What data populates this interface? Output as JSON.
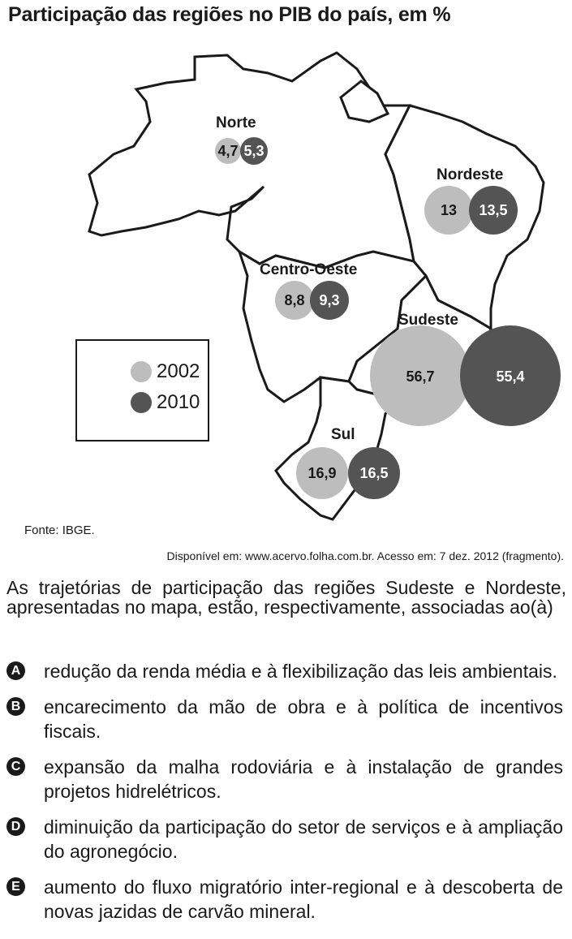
{
  "title": "Participação das regiões no PIB do país, em %",
  "legend": {
    "items": [
      {
        "label": "2002",
        "color": "#bdbdbd"
      },
      {
        "label": "2010",
        "color": "#545454"
      }
    ]
  },
  "regions": [
    {
      "name": "Norte",
      "v2002": "4,7",
      "v2010": "5,3"
    },
    {
      "name": "Nordeste",
      "v2002": "13",
      "v2010": "13,5"
    },
    {
      "name": "Centro-Oeste",
      "v2002": "8,8",
      "v2010": "9,3"
    },
    {
      "name": "Sudeste",
      "v2002": "56,7",
      "v2010": "55,4"
    },
    {
      "name": "Sul",
      "v2002": "16,9",
      "v2010": "16,5"
    }
  ],
  "source": "Fonte: IBGE.",
  "citation": "Disponível em: www.acervo.folha.com.br. Acesso em: 7 dez. 2012 (fragmento).",
  "question": "As trajetórias de participação das regiões Sudeste e Nordeste, apresentadas no mapa, estão, respectivamente, associadas ao(à)",
  "options": [
    {
      "letter": "A",
      "text": "redução da renda média e à flexibilização das leis ambientais."
    },
    {
      "letter": "B",
      "text": "encarecimento da mão de obra e à política de incentivos fiscais."
    },
    {
      "letter": "C",
      "text": "expansão da malha rodoviária e à instalação de grandes projetos hidrelétricos."
    },
    {
      "letter": "D",
      "text": "diminuição da participação do setor de serviços e à ampliação do agronegócio."
    },
    {
      "letter": "E",
      "text": "aumento do fluxo migratório inter-regional e à descoberta de novas jazidas de carvão mineral."
    }
  ]
}
